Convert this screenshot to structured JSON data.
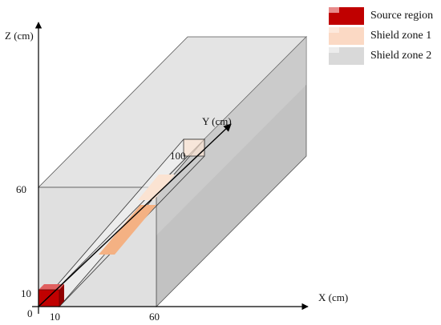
{
  "axes": {
    "z_label": "Z (cm)",
    "y_label": "Y (cm)",
    "x_label": "X (cm)",
    "origin": "0"
  },
  "ticks": {
    "z_60": "60",
    "z_10": "10",
    "x_10": "10",
    "x_60": "60",
    "y_100": "100"
  },
  "legend": {
    "items": [
      {
        "label": "Source region",
        "color": "#c00000",
        "accent": "#e88a8a"
      },
      {
        "label": "Shield zone 1",
        "color": "#fbd9c4",
        "accent": "#fde9dc"
      },
      {
        "label": "Shield zone 2",
        "color": "#d9d9d9",
        "accent": "#ececec"
      }
    ]
  },
  "colors": {
    "source": "#c00000",
    "shield1": "#f4b183",
    "shield1_light": "#fbe3d2",
    "shield2_front": "#d8d8d8",
    "shield2_side": "#c4c4c4",
    "shield2_top": "#e6e6e6"
  }
}
